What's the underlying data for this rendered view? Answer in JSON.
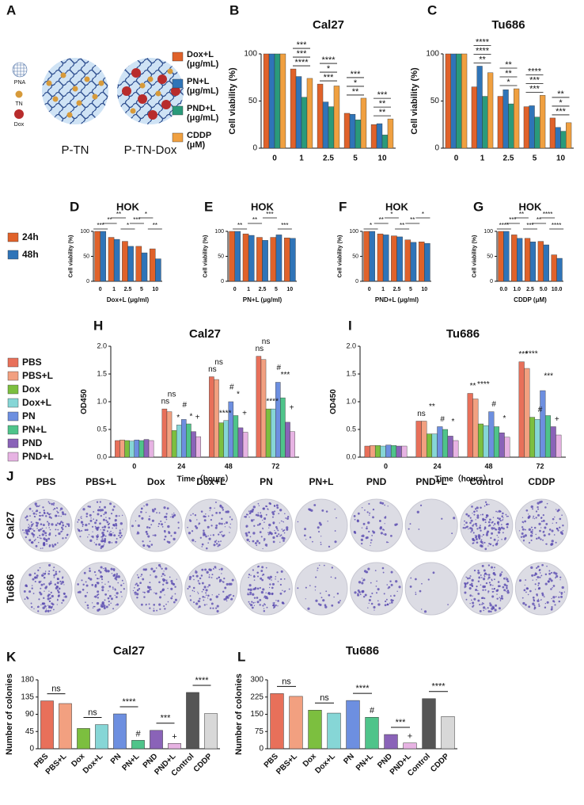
{
  "panel_labels": [
    "A",
    "B",
    "C",
    "D",
    "E",
    "F",
    "G",
    "H",
    "I",
    "J",
    "K",
    "L"
  ],
  "schematic": {
    "labels": [
      "PNA",
      "TN",
      "Dox"
    ],
    "particles": [
      "P-TN",
      "P-TN-Dox"
    ]
  },
  "colonies": {
    "columns": [
      "PBS",
      "PBS+L",
      "Dox",
      "Dox+L",
      "PN",
      "PN+L",
      "PND",
      "PND+L",
      "Control",
      "CDDP"
    ],
    "rows": [
      "Cal27",
      "Tu686"
    ]
  },
  "chart_data": [
    {
      "type": "bar",
      "title": "Cal27",
      "y_label": "Cell viability (%)",
      "categories": [
        "0",
        "1",
        "2.5",
        "5",
        "10"
      ],
      "series": [
        {
          "name": "Dox+L (μg/mL)",
          "color": "#e0622a",
          "values": [
            100,
            84,
            68,
            37,
            25
          ]
        },
        {
          "name": "PN+L (μg/mL)",
          "color": "#2f74b8",
          "values": [
            100,
            76,
            49,
            36,
            26
          ]
        },
        {
          "name": "PND+L (μg/mL)",
          "color": "#2a9a7a",
          "values": [
            100,
            54,
            44,
            30,
            14
          ]
        },
        {
          "name": "CDDP (μM)",
          "color": "#f0a040",
          "values": [
            100,
            74,
            66,
            53,
            31
          ]
        }
      ],
      "ylim": [
        0,
        100
      ],
      "yticks": [
        0,
        50,
        100
      ],
      "annotations": [
        [],
        [
          "****",
          "***",
          "***"
        ],
        [
          "***",
          "*",
          "****"
        ],
        [
          "**",
          "*",
          "***"
        ],
        [
          "**",
          "**",
          "***"
        ]
      ]
    },
    {
      "type": "bar",
      "title": "Tu686",
      "y_label": "Cell viability (%)",
      "categories": [
        "0",
        "1",
        "2.5",
        "5",
        "10"
      ],
      "series": [
        {
          "color": "#e0622a",
          "values": [
            100,
            65,
            55,
            44,
            32
          ]
        },
        {
          "color": "#2f74b8",
          "values": [
            100,
            87,
            62,
            45,
            22
          ]
        },
        {
          "color": "#2a9a7a",
          "values": [
            100,
            55,
            47,
            33,
            18
          ]
        },
        {
          "color": "#f0a040",
          "values": [
            100,
            80,
            63,
            56,
            27
          ]
        }
      ],
      "ylim": [
        0,
        100
      ],
      "yticks": [
        0,
        50,
        100
      ],
      "annotations": [
        [],
        [
          "**",
          "****",
          "****"
        ],
        [
          "*",
          "**",
          "**"
        ],
        [
          "***",
          "***",
          "****"
        ],
        [
          "***",
          "*",
          "**"
        ]
      ]
    },
    {
      "type": "bar",
      "title": "HOK",
      "y_label": "Cell viability (%)",
      "x_label": "Dox+L (μg/ml)",
      "categories": [
        "0",
        "1",
        "2.5",
        "5",
        "10"
      ],
      "series": [
        {
          "name": "24h",
          "color": "#e0622a",
          "values": [
            100,
            88,
            80,
            70,
            65
          ]
        },
        {
          "name": "48h",
          "color": "#2f74b8",
          "values": [
            100,
            84,
            70,
            57,
            45
          ]
        }
      ],
      "ylim": [
        0,
        100
      ],
      "yticks": [
        0,
        50,
        100
      ],
      "annotations": [
        "***",
        "**",
        "**",
        "*",
        "***",
        "*",
        "**"
      ]
    },
    {
      "type": "bar",
      "title": "HOK",
      "y_label": "Cell viability (%)",
      "x_label": "PN+L (μg/ml)",
      "categories": [
        "0",
        "1",
        "2.5",
        "5",
        "10"
      ],
      "series": [
        {
          "color": "#e0622a",
          "values": [
            100,
            95,
            88,
            88,
            87
          ]
        },
        {
          "color": "#2f74b8",
          "values": [
            100,
            92,
            82,
            93,
            86
          ]
        }
      ],
      "ylim": [
        0,
        100
      ],
      "yticks": [
        0,
        50,
        100
      ],
      "annotations": [
        "**",
        "**",
        "***",
        "***"
      ]
    },
    {
      "type": "bar",
      "title": "HOK",
      "y_label": "Cell viability (%)",
      "x_label": "PND+L (μg/ml)",
      "categories": [
        "0",
        "1",
        "2.5",
        "5",
        "10"
      ],
      "series": [
        {
          "color": "#e0622a",
          "values": [
            100,
            95,
            91,
            83,
            79
          ]
        },
        {
          "color": "#2f74b8",
          "values": [
            100,
            93,
            89,
            78,
            76
          ]
        }
      ],
      "ylim": [
        0,
        100
      ],
      "yticks": [
        0,
        50,
        100
      ],
      "annotations": [
        "*",
        "**",
        "*",
        "**",
        "**",
        "*"
      ]
    },
    {
      "type": "bar",
      "title": "HOK",
      "y_label": "Cell viability (%)",
      "x_label": "CDDP (μM)",
      "categories": [
        "0.0",
        "1.0",
        "2.5",
        "5.0",
        "10.0"
      ],
      "series": [
        {
          "color": "#e0622a",
          "values": [
            100,
            93,
            86,
            80,
            53
          ]
        },
        {
          "color": "#2f74b8",
          "values": [
            100,
            86,
            79,
            73,
            46
          ]
        }
      ],
      "ylim": [
        0,
        100
      ],
      "yticks": [
        0,
        50,
        100
      ],
      "annotations": [
        "****",
        "***",
        "**",
        "***",
        "**",
        "****",
        "****"
      ]
    },
    {
      "type": "bar",
      "title": "Cal27",
      "y_label": "OD450",
      "x_label": "Time（hours）",
      "categories": [
        "0",
        "24",
        "48",
        "72"
      ],
      "series": [
        {
          "name": "PBS",
          "color": "#e8705a",
          "values": [
            0.3,
            0.87,
            1.45,
            1.82
          ]
        },
        {
          "name": "PBS+L",
          "color": "#f2a080",
          "values": [
            0.31,
            0.82,
            1.4,
            1.76
          ]
        },
        {
          "name": "Dox",
          "color": "#7cbf3f",
          "values": [
            0.3,
            0.48,
            0.62,
            0.87
          ]
        },
        {
          "name": "Dox+L",
          "color": "#86d6d6",
          "values": [
            0.29,
            0.58,
            0.66,
            0.87
          ]
        },
        {
          "name": "PN",
          "color": "#6d8fe0",
          "values": [
            0.31,
            0.68,
            1.0,
            1.35
          ]
        },
        {
          "name": "PN+L",
          "color": "#4fc48a",
          "values": [
            0.3,
            0.6,
            0.75,
            1.07
          ]
        },
        {
          "name": "PND",
          "color": "#8a63b8",
          "values": [
            0.32,
            0.46,
            0.53,
            0.63
          ]
        },
        {
          "name": "PND+L",
          "color": "#e7b3e3",
          "values": [
            0.3,
            0.37,
            0.45,
            0.46
          ]
        }
      ],
      "ylim": [
        0,
        2
      ],
      "yticks": [
        {
          "value": 0,
          "label": "0.0"
        },
        0.5,
        {
          "value": 1,
          "label": "1.0"
        },
        1.5,
        {
          "value": 2,
          "label": "2.0"
        }
      ],
      "annotations": [
        [],
        [
          "ns",
          "ns",
          "*",
          "#",
          "*",
          "+"
        ],
        [
          "ns",
          "ns",
          "****",
          "#",
          "*",
          "+"
        ],
        [
          "ns",
          "ns",
          "****",
          "#",
          "***",
          "+"
        ]
      ]
    },
    {
      "type": "bar",
      "title": "Tu686",
      "y_label": "OD450",
      "x_label": "Time（hours）",
      "categories": [
        "0",
        "24",
        "48",
        "72"
      ],
      "series": [
        {
          "color": "#e8705a",
          "values": [
            0.2,
            0.65,
            1.15,
            1.72
          ]
        },
        {
          "color": "#f2a080",
          "values": [
            0.21,
            0.65,
            1.05,
            1.6
          ]
        },
        {
          "color": "#7cbf3f",
          "values": [
            0.21,
            0.42,
            0.6,
            0.72
          ]
        },
        {
          "color": "#86d6d6",
          "values": [
            0.2,
            0.42,
            0.57,
            0.68
          ]
        },
        {
          "color": "#6d8fe0",
          "values": [
            0.22,
            0.55,
            0.82,
            1.2
          ]
        },
        {
          "color": "#4fc48a",
          "values": [
            0.21,
            0.5,
            0.55,
            0.75
          ]
        },
        {
          "color": "#8a63b8",
          "values": [
            0.2,
            0.38,
            0.44,
            0.55
          ]
        },
        {
          "color": "#e7b3e3",
          "values": [
            0.2,
            0.3,
            0.36,
            0.4
          ]
        }
      ],
      "ylim": [
        0,
        2
      ],
      "yticks": [
        {
          "value": 0,
          "label": "0.0"
        },
        0.5,
        {
          "value": 1,
          "label": "1.0"
        },
        1.5,
        {
          "value": 2,
          "label": "2.0"
        }
      ],
      "annotations": [
        [],
        [
          "ns",
          "**",
          "#",
          "*"
        ],
        [
          "**",
          "****",
          "#",
          "*"
        ],
        [
          "***",
          "****",
          "#",
          "***",
          "+"
        ]
      ]
    },
    {
      "type": "bar",
      "title": "Cal27",
      "y_label": "Number of colonies",
      "categories": [
        "PBS",
        "PBS+L",
        "Dox",
        "Dox+L",
        "PN",
        "PN+L",
        "PND",
        "PND+L",
        "Control",
        "CDDP"
      ],
      "values": [
        125,
        118,
        53,
        63,
        91,
        22,
        48,
        14,
        147,
        92
      ],
      "colors": [
        "#e8705a",
        "#f2a080",
        "#7cbf3f",
        "#86d6d6",
        "#6d8fe0",
        "#4fc48a",
        "#8a63b8",
        "#e7b3e3",
        "#555555",
        "#d8d8d8"
      ],
      "ylim": [
        0,
        180
      ],
      "yticks": [
        0,
        45,
        90,
        135,
        180
      ],
      "annotations": [
        "ns",
        "ns",
        "****",
        "#",
        "***",
        "+",
        "****"
      ]
    },
    {
      "type": "bar",
      "title": "Tu686",
      "y_label": "Number of colonies",
      "categories": [
        "PBS",
        "PBS+L",
        "Dox",
        "Dox+L",
        "PN",
        "PN+L",
        "PND",
        "PND+L",
        "Control",
        "CDDP"
      ],
      "values": [
        240,
        228,
        168,
        155,
        210,
        137,
        62,
        25,
        218,
        140
      ],
      "colors": [
        "#e8705a",
        "#f2a080",
        "#7cbf3f",
        "#86d6d6",
        "#6d8fe0",
        "#4fc48a",
        "#8a63b8",
        "#e7b3e3",
        "#555555",
        "#d8d8d8"
      ],
      "ylim": [
        0,
        300
      ],
      "yticks": [
        0,
        75,
        150,
        225,
        300
      ],
      "annotations": [
        "ns",
        "ns",
        "****",
        "#",
        "***",
        "+",
        "****"
      ]
    }
  ]
}
